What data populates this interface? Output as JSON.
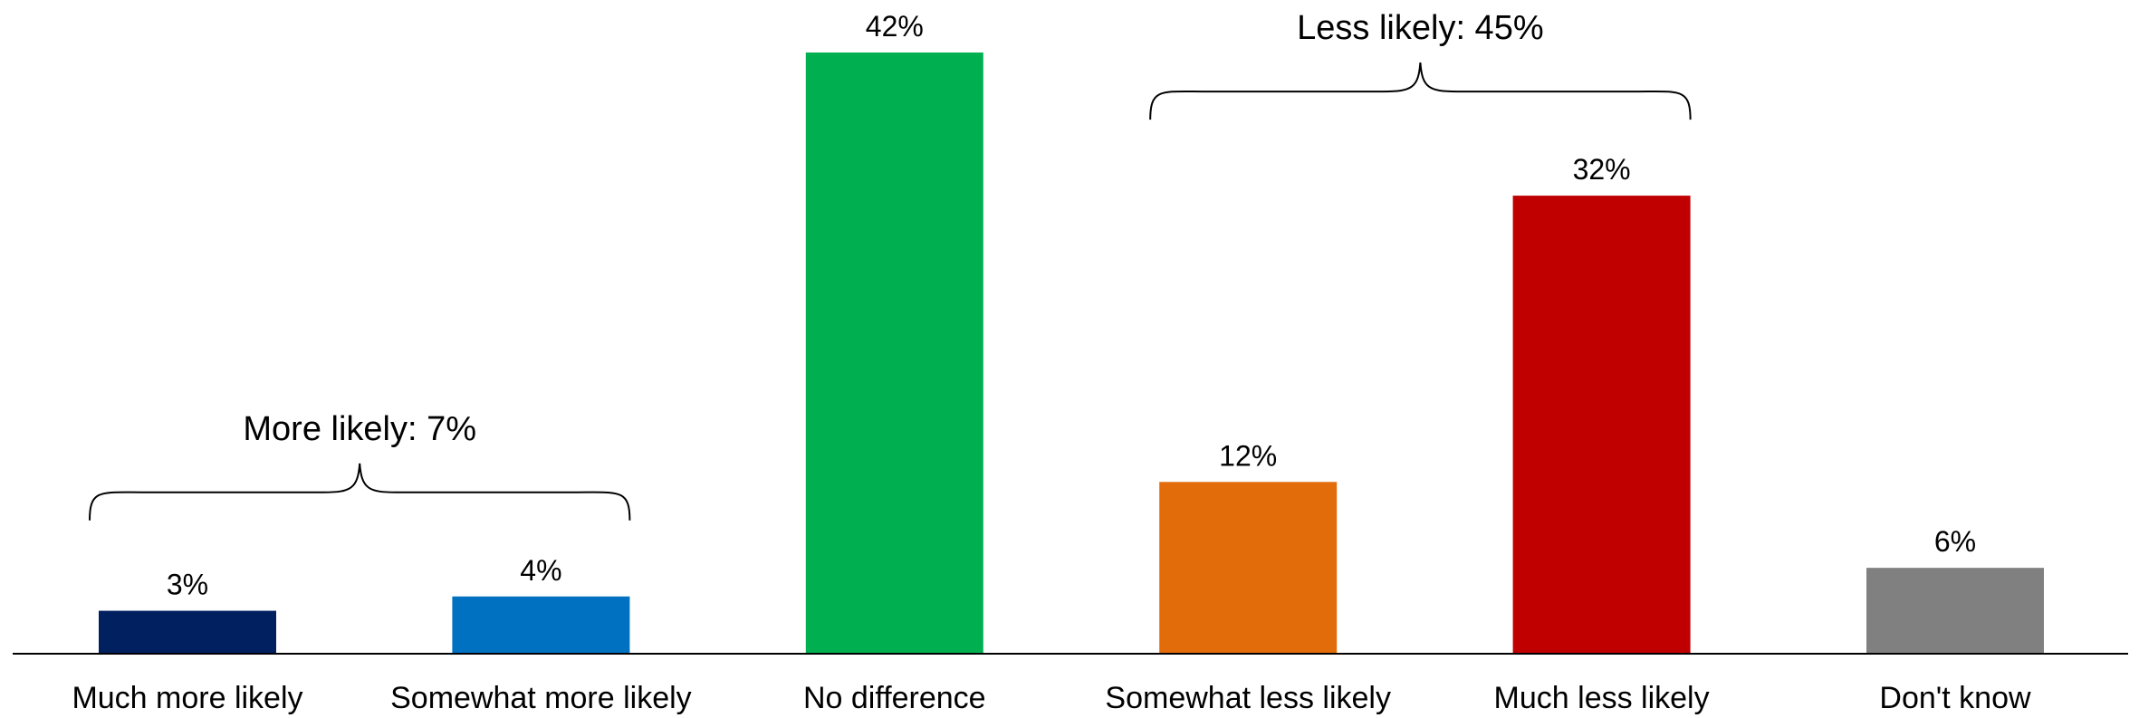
{
  "chart_data": {
    "type": "bar",
    "categories": [
      "Much more likely",
      "Somewhat more likely",
      "No difference",
      "Somewhat less likely",
      "Much less likely",
      "Don't know"
    ],
    "values": [
      3,
      4,
      42,
      12,
      32,
      6
    ],
    "data_labels": [
      "3%",
      "4%",
      "42%",
      "12%",
      "32%",
      "6%"
    ],
    "colors": [
      "#002060",
      "#0070C0",
      "#00B050",
      "#E36C0A",
      "#C00000",
      "#808080"
    ],
    "ylim": [
      0,
      42
    ],
    "grid": false,
    "legend": "none",
    "annotations": [
      {
        "label": "More likely: 7%",
        "from": 0,
        "to": 1
      },
      {
        "label": "Less likely: 45%",
        "from": 3,
        "to": 4
      }
    ]
  }
}
